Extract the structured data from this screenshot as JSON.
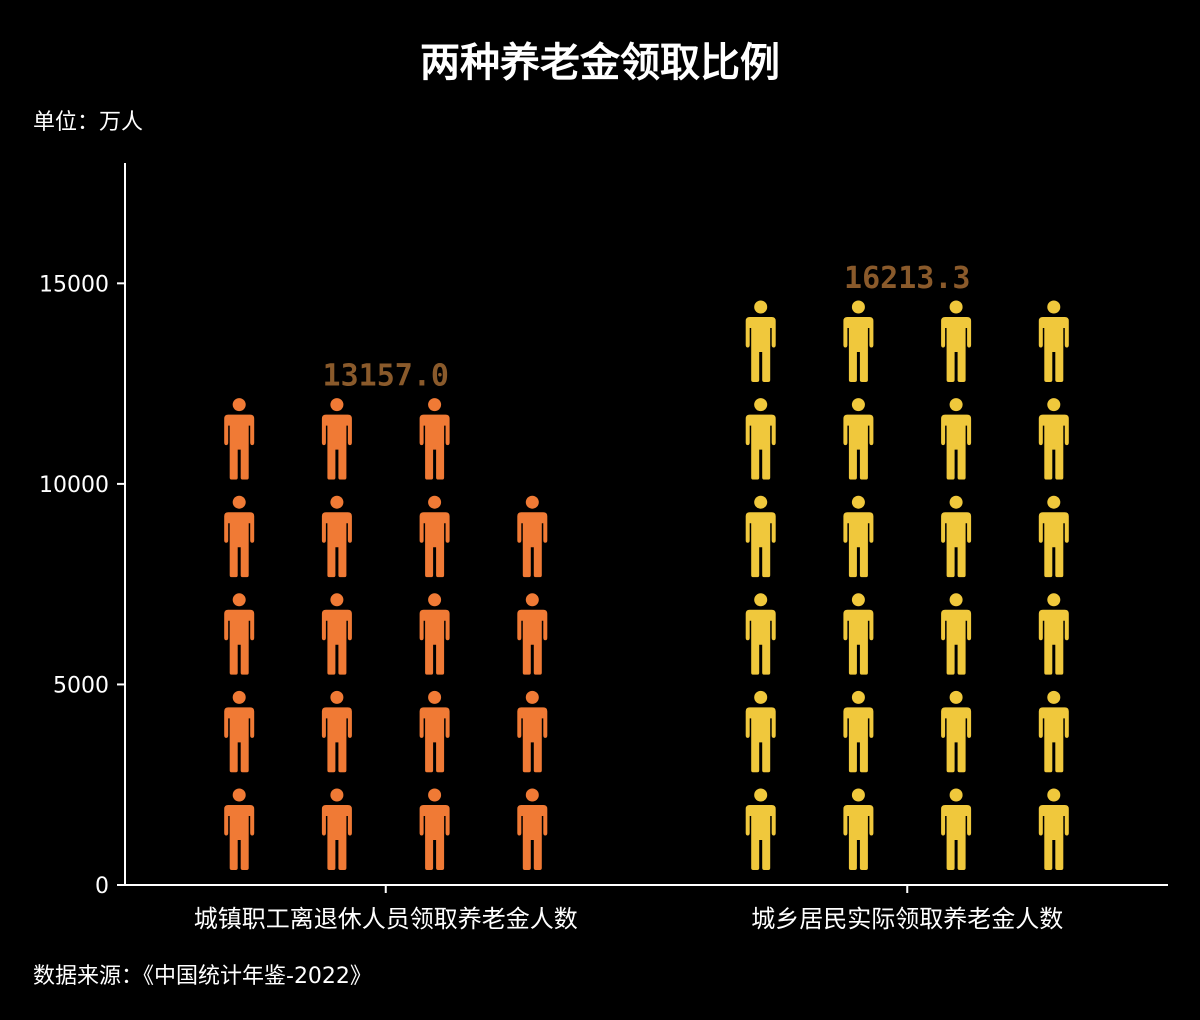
{
  "header": {
    "title": "两种养老金领取比例",
    "unit": "单位：万人"
  },
  "footer": {
    "source": "数据来源：《中国统计年鉴-2022》"
  },
  "colors": {
    "background": "#000000",
    "axis": "#ffffff",
    "label": "#8a5a2b",
    "series": [
      "#f07a35",
      "#f0c83c"
    ]
  },
  "chart_data": {
    "type": "bar",
    "title": "两种养老金领取比例",
    "ylabel": "单位：万人",
    "categories": [
      "城镇职工离退休人员领取养老金人数",
      "城乡居民实际领取养老金人数"
    ],
    "values": [
      13157.0,
      16213.3
    ],
    "data_labels": [
      "13157.0",
      "16213.3"
    ],
    "icon_counts": [
      19,
      24
    ],
    "ylim": [
      0,
      18000
    ],
    "yticks": [
      0,
      5000,
      10000,
      15000
    ],
    "ytick_labels": [
      "0",
      "5000",
      "10000",
      "15000"
    ],
    "grid": false,
    "legend": "none"
  }
}
